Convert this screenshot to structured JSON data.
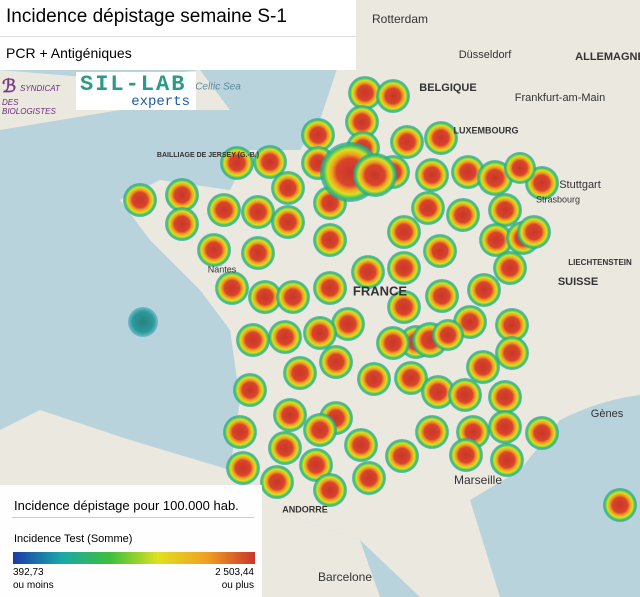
{
  "header": {
    "title": "Incidence dépistage semaine S-1",
    "subtitle": "PCR + Antigéniques"
  },
  "logos": {
    "syndicat_line1": "SYNDICAT",
    "syndicat_line2": "DES BIOLOGISTES",
    "sillab": "SIL-LAB",
    "sillab_sub": "experts"
  },
  "map_labels": [
    "Rotterdam",
    "Düsseldorf",
    "BELGIQUE",
    "ALLEMAGNE",
    "LUXEMBOURG",
    "Frankfurt-am-Main",
    "Stuttgart",
    "LIECHTENSTEIN",
    "SUISSE",
    "FRANCE",
    "Nantes",
    "Marseille",
    "Barcelone",
    "ANDORRE",
    "Gènes",
    "Celtic Sea",
    "BAILLIAGE DE JERSEY (G.-B.)",
    "Strasbourg"
  ],
  "legend": {
    "title": "Incidence dépistage pour 100.000 hab.",
    "measure": "Incidence Test (Somme)",
    "min": {
      "value": 392.73,
      "label": "392,73"
    },
    "min_note": "ou moins",
    "max": {
      "value": 2503.44,
      "label": "2 503,44"
    },
    "max_note": "ou plus"
  }
}
